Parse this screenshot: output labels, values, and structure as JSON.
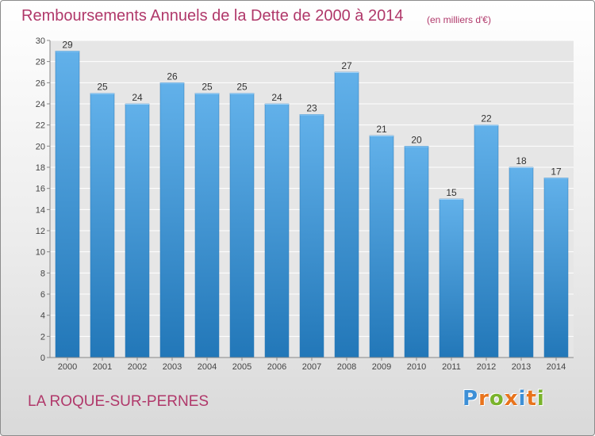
{
  "title": "Remboursements Annuels de la Dette de 2000 à 2014",
  "unit_note": "(en milliers d'€)",
  "commune": "LA ROQUE-SUR-PERNES",
  "logo": {
    "text": "Proxiti",
    "letter_colors": [
      "#3d8fd6",
      "#e8731c",
      "#79b32b",
      "#e8731c",
      "#3d8fd6",
      "#e8731c",
      "#79b32b"
    ]
  },
  "colors": {
    "title": "#b0386a",
    "bar_light": "#62b1ea",
    "bar_dark": "#2277b8",
    "grid": "#ffffff",
    "plot_bg": "#e6e6e6"
  },
  "chart_data": {
    "type": "bar",
    "title": "Remboursements Annuels de la Dette de 2000 à 2014",
    "subtitle": "(en milliers d'€)",
    "categories": [
      "2000",
      "2001",
      "2002",
      "2003",
      "2004",
      "2005",
      "2006",
      "2007",
      "2008",
      "2009",
      "2010",
      "2011",
      "2012",
      "2013",
      "2014"
    ],
    "values": [
      29,
      25,
      24,
      26,
      25,
      25,
      24,
      23,
      27,
      21,
      20,
      15,
      22,
      18,
      17
    ],
    "ylim": [
      0,
      30
    ],
    "yticks": [
      0,
      2,
      4,
      6,
      8,
      10,
      12,
      14,
      16,
      18,
      20,
      22,
      24,
      26,
      28,
      30
    ],
    "xlabel": "",
    "ylabel": "",
    "grid": true,
    "legend": "none"
  }
}
